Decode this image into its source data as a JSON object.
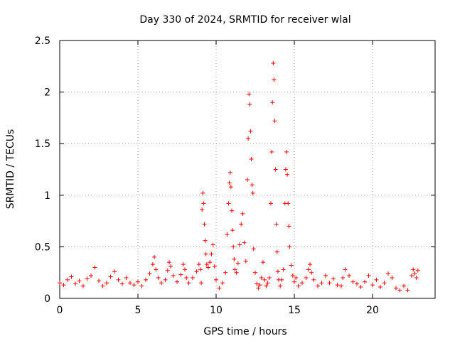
{
  "chart_data": {
    "type": "scatter",
    "title": "Day 330 of 2024, SRMTID for receiver wlal",
    "xlabel": "GPS time / hours",
    "ylabel": "SRMTID / TECUs",
    "xlim": [
      0,
      24
    ],
    "ylim": [
      0,
      2.5
    ],
    "x_ticks": [
      0,
      5,
      10,
      15,
      20
    ],
    "y_ticks": [
      0,
      0.5,
      1,
      1.5,
      2,
      2.5
    ],
    "x_tick_labels": [
      "0",
      "5",
      "10",
      "15",
      "20"
    ],
    "y_tick_labels": [
      "0",
      "0.5",
      "1",
      "1.5",
      "2",
      "2.5"
    ],
    "grid": true,
    "marker": "+",
    "color": "#ff0000",
    "series": [
      {
        "name": "SRMTID",
        "x": [
          0.0,
          0.25,
          0.5,
          0.75,
          1.0,
          1.25,
          1.5,
          1.75,
          2.0,
          2.25,
          2.5,
          2.75,
          3.0,
          3.25,
          3.5,
          3.75,
          4.0,
          4.25,
          4.5,
          4.75,
          5.0,
          5.25,
          5.5,
          5.75,
          5.95,
          6.05,
          6.15,
          6.3,
          6.5,
          6.75,
          6.9,
          7.0,
          7.1,
          7.25,
          7.5,
          7.75,
          7.9,
          8.0,
          8.1,
          8.25,
          8.5,
          8.75,
          8.9,
          9.0,
          9.05,
          9.1,
          9.15,
          9.2,
          9.25,
          9.3,
          9.35,
          9.4,
          9.5,
          9.6,
          9.7,
          9.8,
          9.9,
          10.0,
          10.2,
          10.4,
          10.6,
          10.7,
          10.8,
          10.85,
          10.9,
          10.95,
          11.0,
          11.05,
          11.1,
          11.15,
          11.2,
          11.3,
          11.4,
          11.5,
          11.6,
          11.7,
          11.8,
          11.9,
          12.0,
          12.05,
          12.1,
          12.15,
          12.2,
          12.25,
          12.3,
          12.35,
          12.4,
          12.5,
          12.6,
          12.7,
          12.8,
          12.9,
          13.0,
          13.1,
          13.2,
          13.3,
          13.4,
          13.5,
          13.55,
          13.6,
          13.65,
          13.7,
          13.75,
          13.8,
          13.85,
          13.9,
          13.95,
          14.0,
          14.1,
          14.2,
          14.3,
          14.4,
          14.45,
          14.5,
          14.55,
          14.6,
          14.65,
          14.7,
          14.8,
          14.9,
          15.0,
          15.1,
          15.25,
          15.5,
          15.75,
          15.9,
          16.0,
          16.1,
          16.25,
          16.5,
          16.75,
          17.0,
          17.25,
          17.5,
          17.75,
          18.0,
          18.1,
          18.25,
          18.5,
          18.75,
          19.0,
          19.25,
          19.5,
          19.75,
          20.0,
          20.25,
          20.5,
          20.75,
          21.0,
          21.25,
          21.5,
          21.75,
          22.0,
          22.25,
          22.5,
          22.6,
          22.7,
          22.8,
          22.9
        ],
        "values": [
          0.15,
          0.13,
          0.18,
          0.21,
          0.14,
          0.17,
          0.12,
          0.19,
          0.22,
          0.3,
          0.17,
          0.12,
          0.15,
          0.21,
          0.26,
          0.18,
          0.14,
          0.2,
          0.15,
          0.13,
          0.16,
          0.12,
          0.18,
          0.24,
          0.33,
          0.4,
          0.28,
          0.2,
          0.15,
          0.18,
          0.27,
          0.35,
          0.31,
          0.22,
          0.16,
          0.23,
          0.33,
          0.28,
          0.2,
          0.15,
          0.2,
          0.26,
          0.33,
          0.28,
          0.15,
          0.86,
          1.02,
          0.92,
          0.72,
          0.56,
          0.43,
          0.33,
          0.3,
          0.35,
          0.43,
          0.52,
          0.31,
          0.18,
          0.1,
          0.15,
          0.25,
          0.62,
          0.92,
          1.12,
          1.22,
          1.08,
          0.85,
          0.66,
          0.5,
          0.38,
          0.28,
          0.25,
          0.34,
          0.52,
          0.72,
          0.82,
          0.54,
          0.36,
          1.15,
          1.55,
          1.98,
          1.88,
          1.62,
          1.35,
          1.1,
          1.02,
          0.48,
          0.25,
          0.14,
          0.1,
          0.13,
          0.2,
          0.35,
          0.18,
          0.12,
          0.15,
          0.2,
          0.92,
          1.42,
          1.9,
          2.28,
          2.12,
          1.72,
          1.25,
          0.72,
          0.45,
          0.26,
          0.18,
          0.12,
          0.18,
          0.28,
          0.92,
          1.25,
          1.42,
          1.2,
          0.92,
          0.7,
          0.5,
          0.32,
          0.22,
          0.16,
          0.2,
          0.12,
          0.15,
          0.2,
          0.28,
          0.33,
          0.25,
          0.18,
          0.12,
          0.15,
          0.22,
          0.15,
          0.19,
          0.13,
          0.12,
          0.2,
          0.28,
          0.22,
          0.16,
          0.14,
          0.11,
          0.16,
          0.22,
          0.13,
          0.18,
          0.11,
          0.15,
          0.24,
          0.2,
          0.1,
          0.08,
          0.12,
          0.08,
          0.22,
          0.28,
          0.24,
          0.2,
          0.27
        ]
      }
    ]
  }
}
